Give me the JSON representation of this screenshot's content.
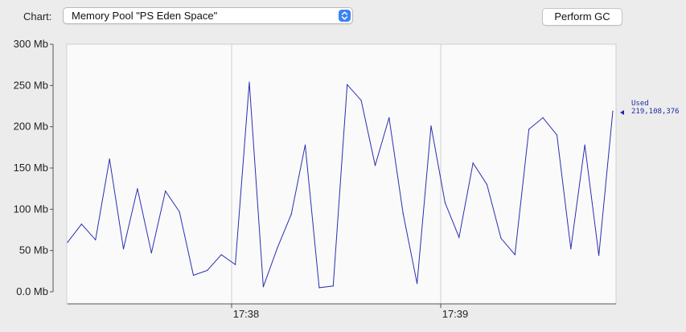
{
  "toolbar": {
    "chart_label": "Chart:",
    "chart_selected": "Memory Pool \"PS Eden Space\"",
    "perform_gc_label": "Perform GC"
  },
  "colors": {
    "series": "#2a2fb0",
    "plot_background": "#fafafa",
    "window_background": "#ececec",
    "select_accent": "#3b82f6"
  },
  "icons": {
    "select_arrows": "chevron-up-down-icon",
    "used_marker": "triangle-left-icon"
  },
  "chart_data": {
    "type": "line",
    "ylabel": "",
    "xlabel": "",
    "ylim": [
      0,
      300
    ],
    "yticks": [
      {
        "value": 0,
        "label": "0.0 Mb"
      },
      {
        "value": 50,
        "label": "50 Mb"
      },
      {
        "value": 100,
        "label": "100 Mb"
      },
      {
        "value": 150,
        "label": "150 Mb"
      },
      {
        "value": 200,
        "label": "200 Mb"
      },
      {
        "value": 250,
        "label": "250 Mb"
      },
      {
        "value": 300,
        "label": "300 Mb"
      }
    ],
    "xticks": [
      {
        "label": "17:38"
      },
      {
        "label": "17:39"
      }
    ],
    "grid": true,
    "series": [
      {
        "name": "Used",
        "values": [
          60,
          82,
          63,
          161,
          52,
          125,
          47,
          122,
          97,
          20,
          26,
          45,
          33,
          254,
          6,
          53,
          94,
          178,
          5,
          7,
          251,
          232,
          153,
          211,
          95,
          10,
          201,
          108,
          66,
          156,
          130,
          65,
          45,
          197,
          211,
          190,
          52,
          178,
          44,
          219
        ]
      }
    ],
    "current_value_label": "Used",
    "current_value": "219,108,376"
  }
}
